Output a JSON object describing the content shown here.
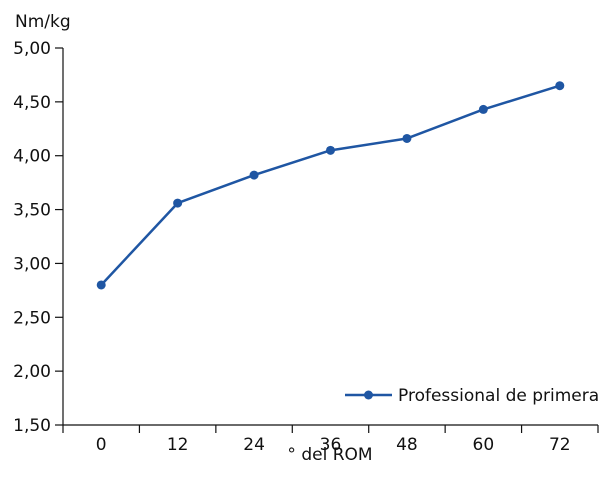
{
  "chart_data": {
    "type": "line",
    "x": [
      "0",
      "12",
      "24",
      "36",
      "48",
      "60",
      "72"
    ],
    "series": [
      {
        "name": "Professional de primera",
        "values": [
          2.8,
          3.56,
          3.82,
          4.05,
          4.16,
          4.43,
          4.65
        ],
        "color": "#1f56a3"
      }
    ],
    "ylabel": "Nm/kg",
    "xlabel": "° del ROM",
    "ylim": [
      1.5,
      5.0
    ],
    "yticks": [
      "1,50",
      "2,00",
      "2,50",
      "3,00",
      "3,50",
      "4,00",
      "4,50",
      "5,00"
    ],
    "xticks": [
      "0",
      "12",
      "24",
      "36",
      "48",
      "60",
      "72"
    ],
    "grid": false,
    "legend_position": "bottom-right"
  }
}
